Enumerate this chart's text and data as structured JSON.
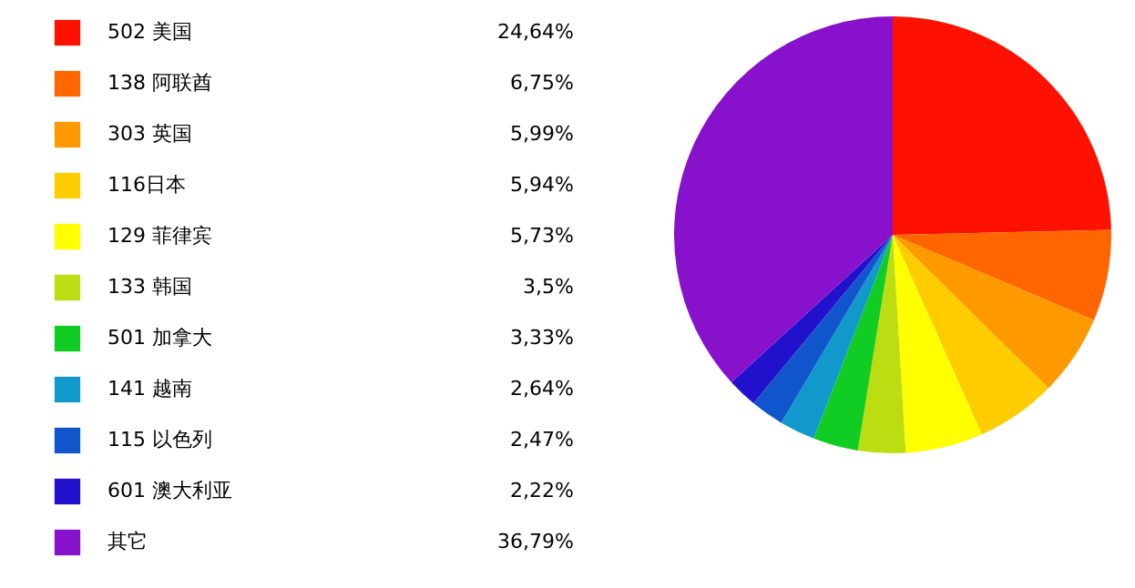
{
  "chart_data": {
    "type": "pie",
    "categories": [
      "502 美国",
      "138 阿联酋",
      "303 英国",
      "116日本",
      "129 菲律宾",
      "133 韩国",
      "501 加拿大",
      "141 越南",
      "115 以色列",
      "601 澳大利亚",
      "其它"
    ],
    "values": [
      24.64,
      6.75,
      5.99,
      5.94,
      5.73,
      3.5,
      3.33,
      2.64,
      2.47,
      2.22,
      36.79
    ],
    "value_labels": [
      "24,64%",
      "6,75%",
      "5,99%",
      "5,94%",
      "5,73%",
      "3,5%",
      "3,33%",
      "2,64%",
      "2,47%",
      "2,22%",
      "36,79%"
    ],
    "colors": [
      "#ff1100",
      "#ff6600",
      "#ff9900",
      "#ffcc00",
      "#ffff00",
      "#bbdd11",
      "#11cc22",
      "#1199cc",
      "#1155cc",
      "#2211cc",
      "#8811cc"
    ],
    "legend": "left"
  }
}
